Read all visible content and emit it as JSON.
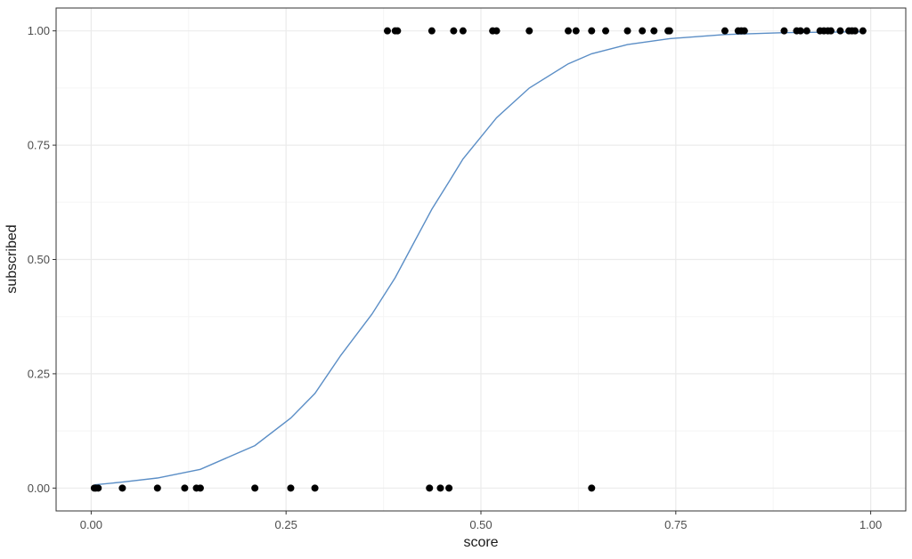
{
  "chart_data": {
    "type": "scatter",
    "title": "",
    "xlabel": "score",
    "ylabel": "subscribed",
    "xlim": [
      -0.045,
      1.045
    ],
    "ylim": [
      -0.05,
      1.05
    ],
    "x_ticks": [
      0.0,
      0.25,
      0.5,
      0.75,
      1.0
    ],
    "x_tick_labels": [
      "0.00",
      "0.25",
      "0.50",
      "0.75",
      "1.00"
    ],
    "y_ticks": [
      0.0,
      0.25,
      0.5,
      0.75,
      1.0
    ],
    "y_tick_labels": [
      "0.00",
      "0.25",
      "0.50",
      "0.75",
      "1.00"
    ],
    "grid": true,
    "legend": "none",
    "colors": {
      "points": "#000000",
      "fit_line": "#5b8ec6",
      "grid_major": "#ebebeb",
      "grid_minor": "#f5f5f5",
      "panel_border": "#333333"
    },
    "points": [
      {
        "x": 0.004,
        "y": 0
      },
      {
        "x": 0.006,
        "y": 0
      },
      {
        "x": 0.009,
        "y": 0
      },
      {
        "x": 0.04,
        "y": 0
      },
      {
        "x": 0.085,
        "y": 0
      },
      {
        "x": 0.12,
        "y": 0
      },
      {
        "x": 0.135,
        "y": 0
      },
      {
        "x": 0.14,
        "y": 0
      },
      {
        "x": 0.21,
        "y": 0
      },
      {
        "x": 0.256,
        "y": 0
      },
      {
        "x": 0.287,
        "y": 0
      },
      {
        "x": 0.434,
        "y": 0
      },
      {
        "x": 0.448,
        "y": 0
      },
      {
        "x": 0.459,
        "y": 0
      },
      {
        "x": 0.642,
        "y": 0
      },
      {
        "x": 0.38,
        "y": 1
      },
      {
        "x": 0.39,
        "y": 1
      },
      {
        "x": 0.393,
        "y": 1
      },
      {
        "x": 0.437,
        "y": 1
      },
      {
        "x": 0.465,
        "y": 1
      },
      {
        "x": 0.477,
        "y": 1
      },
      {
        "x": 0.515,
        "y": 1
      },
      {
        "x": 0.52,
        "y": 1
      },
      {
        "x": 0.562,
        "y": 1
      },
      {
        "x": 0.612,
        "y": 1
      },
      {
        "x": 0.622,
        "y": 1
      },
      {
        "x": 0.642,
        "y": 1
      },
      {
        "x": 0.66,
        "y": 1
      },
      {
        "x": 0.688,
        "y": 1
      },
      {
        "x": 0.707,
        "y": 1
      },
      {
        "x": 0.722,
        "y": 1
      },
      {
        "x": 0.74,
        "y": 1
      },
      {
        "x": 0.742,
        "y": 1
      },
      {
        "x": 0.813,
        "y": 1
      },
      {
        "x": 0.83,
        "y": 1
      },
      {
        "x": 0.834,
        "y": 1
      },
      {
        "x": 0.838,
        "y": 1
      },
      {
        "x": 0.889,
        "y": 1
      },
      {
        "x": 0.905,
        "y": 1
      },
      {
        "x": 0.91,
        "y": 1
      },
      {
        "x": 0.918,
        "y": 1
      },
      {
        "x": 0.935,
        "y": 1
      },
      {
        "x": 0.94,
        "y": 1
      },
      {
        "x": 0.945,
        "y": 1
      },
      {
        "x": 0.949,
        "y": 1
      },
      {
        "x": 0.961,
        "y": 1
      },
      {
        "x": 0.972,
        "y": 1
      },
      {
        "x": 0.976,
        "y": 1
      },
      {
        "x": 0.98,
        "y": 1
      },
      {
        "x": 0.99,
        "y": 1
      }
    ],
    "fit_curve": [
      {
        "x": 0.004,
        "y": 0.007
      },
      {
        "x": 0.04,
        "y": 0.013
      },
      {
        "x": 0.085,
        "y": 0.022
      },
      {
        "x": 0.14,
        "y": 0.041
      },
      {
        "x": 0.21,
        "y": 0.093
      },
      {
        "x": 0.256,
        "y": 0.153
      },
      {
        "x": 0.287,
        "y": 0.207
      },
      {
        "x": 0.32,
        "y": 0.29
      },
      {
        "x": 0.36,
        "y": 0.38
      },
      {
        "x": 0.39,
        "y": 0.46
      },
      {
        "x": 0.415,
        "y": 0.54
      },
      {
        "x": 0.437,
        "y": 0.61
      },
      {
        "x": 0.459,
        "y": 0.67
      },
      {
        "x": 0.477,
        "y": 0.72
      },
      {
        "x": 0.52,
        "y": 0.81
      },
      {
        "x": 0.562,
        "y": 0.875
      },
      {
        "x": 0.612,
        "y": 0.928
      },
      {
        "x": 0.642,
        "y": 0.95
      },
      {
        "x": 0.688,
        "y": 0.97
      },
      {
        "x": 0.742,
        "y": 0.983
      },
      {
        "x": 0.813,
        "y": 0.992
      },
      {
        "x": 0.889,
        "y": 0.996
      },
      {
        "x": 0.99,
        "y": 0.998
      }
    ]
  }
}
